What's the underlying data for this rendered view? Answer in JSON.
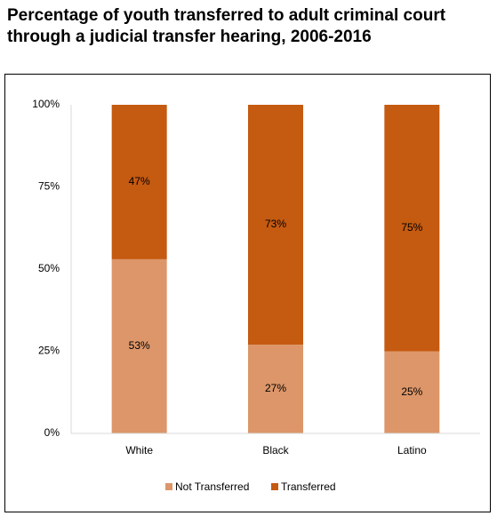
{
  "chart_data": {
    "type": "stacked_bar",
    "title": "Percentage of youth transferred to adult criminal court through a judicial transfer hearing, 2006-2016",
    "categories": [
      "White",
      "Black",
      "Latino"
    ],
    "series": [
      {
        "name": "Not Transferred",
        "color": "#dc9669",
        "values": [
          53,
          27,
          25
        ],
        "value_labels": [
          "53%",
          "27%",
          "25%"
        ]
      },
      {
        "name": "Transferred",
        "color": "#c55a11",
        "values": [
          47,
          73,
          75
        ],
        "value_labels": [
          "47%",
          "73%",
          "75%"
        ]
      }
    ],
    "ylim": [
      0,
      100
    ],
    "yticks": [
      {
        "value": 0,
        "label": "0%"
      },
      {
        "value": 25,
        "label": "25%"
      },
      {
        "value": 50,
        "label": "50%"
      },
      {
        "value": 75,
        "label": "75%"
      },
      {
        "value": 100,
        "label": "100%"
      }
    ],
    "grid": false,
    "legend": "bottom"
  }
}
